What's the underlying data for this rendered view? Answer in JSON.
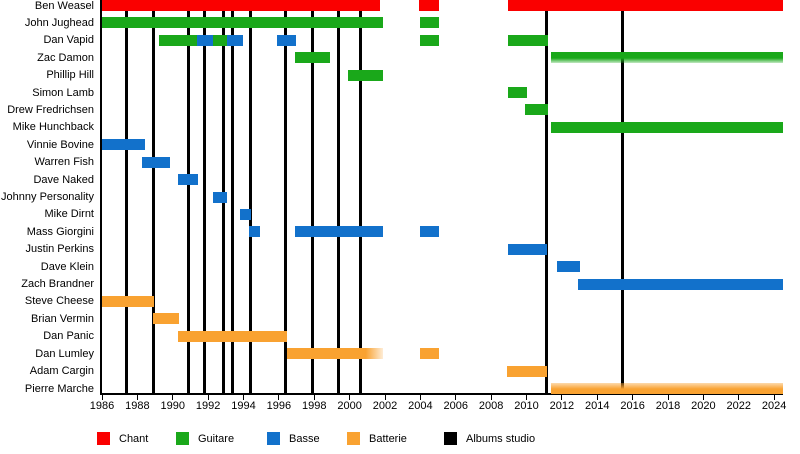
{
  "chart_data": {
    "type": "timeline",
    "title": "",
    "x_axis": {
      "min": 1986,
      "max": 2024.5,
      "ticks": [
        1986,
        1988,
        1990,
        1992,
        1994,
        1996,
        1998,
        2000,
        2002,
        2004,
        2006,
        2008,
        2010,
        2012,
        2014,
        2016,
        2018,
        2020,
        2022,
        2024
      ]
    },
    "legend": [
      {
        "role": "chant",
        "label": "Chant",
        "color": "#fa0000"
      },
      {
        "role": "guitare",
        "label": "Guitare",
        "color": "#1aa81a"
      },
      {
        "role": "basse",
        "label": "Basse",
        "color": "#1271cb"
      },
      {
        "role": "batterie",
        "label": "Batterie",
        "color": "#f9a231"
      },
      {
        "role": "albums",
        "label": "Albums studio",
        "color": "#000000"
      }
    ],
    "album_lines_years": [
      1987.4,
      1988.9,
      1990.9,
      1991.8,
      1992.85,
      1993.4,
      1994.4,
      1996.35,
      1997.9,
      1999.35,
      2000.6,
      2011.15,
      2015.4
    ],
    "members": [
      {
        "name": "Ben Weasel",
        "bars": [
          {
            "role": "chant",
            "start": 1986,
            "end": 2001.7
          },
          {
            "role": "chant",
            "start": 2003.9,
            "end": 2005.05
          },
          {
            "role": "chant",
            "start": 2008.95,
            "end": 2024.5
          }
        ]
      },
      {
        "name": "John Jughead",
        "bars": [
          {
            "role": "guitare",
            "start": 1986,
            "end": 2001.9
          },
          {
            "role": "guitare",
            "start": 2003.95,
            "end": 2005.05
          }
        ]
      },
      {
        "name": "Dan Vapid",
        "bars": [
          {
            "role": "guitare",
            "start": 1989.25,
            "end": 1991.35
          },
          {
            "role": "basse",
            "start": 1991.35,
            "end": 1992.25
          },
          {
            "role": "guitare",
            "start": 1992.25,
            "end": 1993.05
          },
          {
            "role": "basse",
            "start": 1993.05,
            "end": 1993.95
          },
          {
            "role": "basse",
            "start": 1995.9,
            "end": 1996.95
          },
          {
            "role": "guitare",
            "start": 2003.95,
            "end": 2005.05
          },
          {
            "role": "guitare",
            "start": 2008.95,
            "end": 2011.2
          }
        ]
      },
      {
        "name": "Zac Damon",
        "bars": [
          {
            "role": "guitare",
            "start": 1996.9,
            "end": 1998.9
          },
          {
            "role": "guitare",
            "start": 2011.4,
            "end": 2024.5,
            "fade": "bottom"
          }
        ]
      },
      {
        "name": "Phillip Hill",
        "bars": [
          {
            "role": "guitare",
            "start": 1999.9,
            "end": 2001.9
          }
        ]
      },
      {
        "name": "Simon Lamb",
        "bars": [
          {
            "role": "guitare",
            "start": 2008.95,
            "end": 2010.0
          }
        ]
      },
      {
        "name": "Drew Fredrichsen",
        "bars": [
          {
            "role": "guitare",
            "start": 2009.9,
            "end": 2011.2
          }
        ]
      },
      {
        "name": "Mike Hunchback",
        "bars": [
          {
            "role": "guitare",
            "start": 2011.4,
            "end": 2024.5
          }
        ]
      },
      {
        "name": "Vinnie Bovine",
        "bars": [
          {
            "role": "basse",
            "start": 1986,
            "end": 1988.45
          }
        ]
      },
      {
        "name": "Warren Fish",
        "bars": [
          {
            "role": "basse",
            "start": 1988.25,
            "end": 1989.85
          }
        ]
      },
      {
        "name": "Dave Naked",
        "bars": [
          {
            "role": "basse",
            "start": 1990.3,
            "end": 1991.45
          }
        ]
      },
      {
        "name": "Johnny Personality",
        "bars": [
          {
            "role": "basse",
            "start": 1992.3,
            "end": 1993.05
          }
        ]
      },
      {
        "name": "Mike Dirnt",
        "bars": [
          {
            "role": "basse",
            "start": 1993.8,
            "end": 1994.45
          }
        ]
      },
      {
        "name": "Mass Giorgini",
        "bars": [
          {
            "role": "basse",
            "start": 1994.3,
            "end": 1994.95
          },
          {
            "role": "basse",
            "start": 1996.9,
            "end": 2001.9
          },
          {
            "role": "basse",
            "start": 2003.95,
            "end": 2005.05
          }
        ]
      },
      {
        "name": "Justin Perkins",
        "bars": [
          {
            "role": "basse",
            "start": 2008.95,
            "end": 2011.15
          }
        ]
      },
      {
        "name": "Dave Klein",
        "bars": [
          {
            "role": "basse",
            "start": 2011.7,
            "end": 2013.0
          }
        ]
      },
      {
        "name": "Zach Brandner",
        "bars": [
          {
            "role": "basse",
            "start": 2012.9,
            "end": 2024.5
          }
        ]
      },
      {
        "name": "Steve Cheese",
        "bars": [
          {
            "role": "batterie",
            "start": 1986,
            "end": 1988.95
          }
        ]
      },
      {
        "name": "Brian Vermin",
        "bars": [
          {
            "role": "batterie",
            "start": 1988.9,
            "end": 1990.35
          }
        ]
      },
      {
        "name": "Dan Panic",
        "bars": [
          {
            "role": "batterie",
            "start": 1990.3,
            "end": 1996.45
          }
        ]
      },
      {
        "name": "Dan Lumley",
        "bars": [
          {
            "role": "batterie",
            "start": 1996.45,
            "end": 2001.9,
            "fade": "right"
          },
          {
            "role": "batterie",
            "start": 2003.95,
            "end": 2005.05
          }
        ]
      },
      {
        "name": "Adam Cargin",
        "bars": [
          {
            "role": "batterie",
            "start": 2008.9,
            "end": 2011.15
          }
        ]
      },
      {
        "name": "Pierre Marche",
        "bars": [
          {
            "role": "batterie",
            "start": 2011.4,
            "end": 2024.5,
            "fade": "top"
          }
        ]
      }
    ]
  }
}
